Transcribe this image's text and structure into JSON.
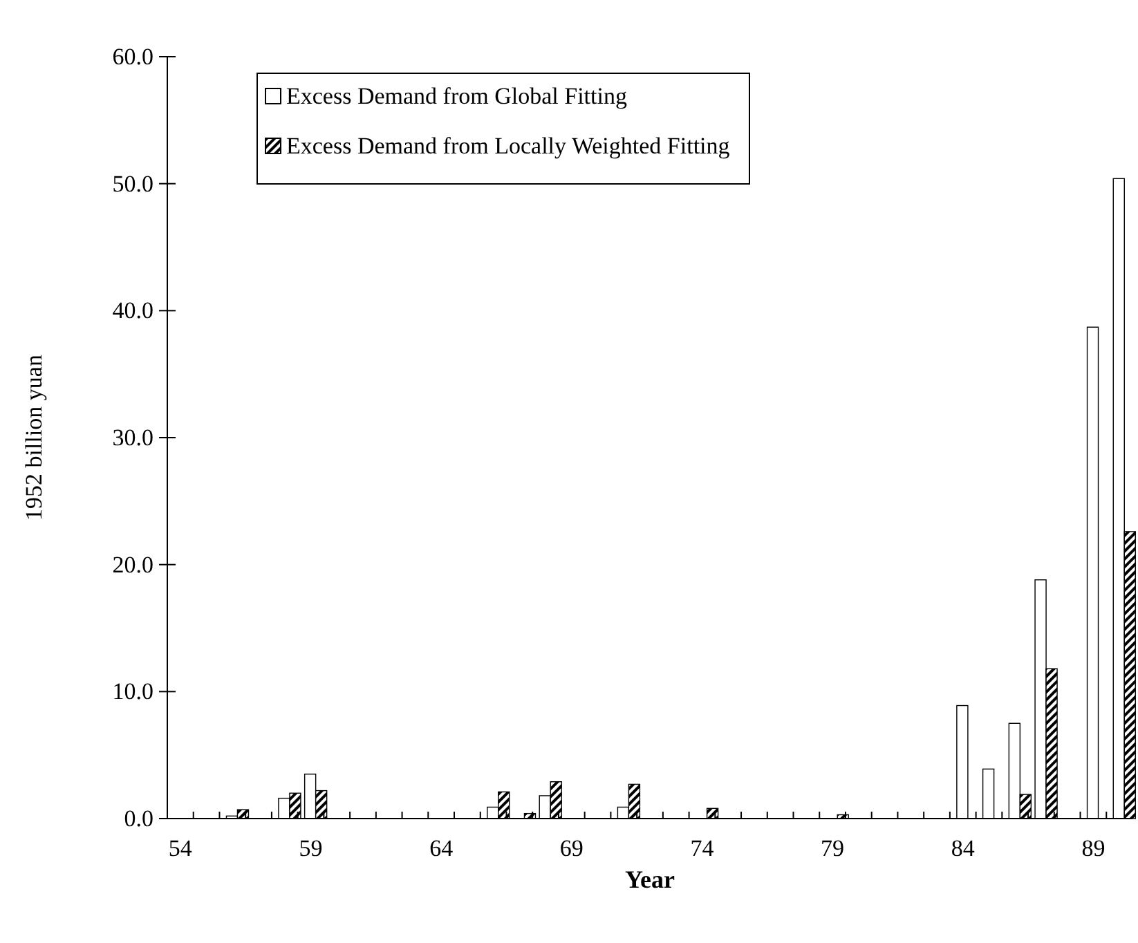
{
  "chart_data": {
    "type": "bar",
    "xlabel": "Year",
    "ylabel": "1952 billion yuan",
    "categories": [
      "54",
      null,
      null,
      null,
      null,
      "59",
      null,
      null,
      null,
      null,
      "64",
      null,
      null,
      null,
      null,
      "69",
      null,
      null,
      null,
      null,
      "74",
      null,
      null,
      null,
      null,
      "79",
      null,
      null,
      null,
      null,
      "84",
      null,
      null,
      null,
      null,
      "89",
      null
    ],
    "series": [
      {
        "name": "Excess Demand from Global Fitting",
        "color": "#ffffff",
        "values": [
          0,
          0,
          0.2,
          0,
          1.6,
          3.5,
          0,
          0,
          0,
          0,
          0,
          0,
          0.9,
          0,
          1.8,
          0,
          0,
          0.9,
          0,
          0,
          0,
          0,
          0,
          0,
          0,
          0,
          0,
          0,
          0,
          0,
          8.9,
          3.9,
          7.5,
          18.8,
          0,
          38.7,
          50.4
        ]
      },
      {
        "name": "Excess Demand from Locally Weighted Fitting",
        "color": "#000000",
        "values": [
          0,
          0,
          0.7,
          0,
          2.0,
          2.2,
          0,
          0,
          0,
          0,
          0,
          0,
          2.1,
          0.4,
          2.9,
          0,
          0,
          2.7,
          0,
          0,
          0.8,
          0,
          0,
          0,
          0,
          0.3,
          0,
          0,
          0,
          0,
          0,
          0,
          1.9,
          11.8,
          0,
          0,
          22.6
        ]
      }
    ],
    "ylim": [
      0,
      60
    ],
    "yticks": [
      {
        "value": 0,
        "label": "0.0"
      },
      {
        "value": 10,
        "label": "10.0"
      },
      {
        "value": 20,
        "label": "20.0"
      },
      {
        "value": 30,
        "label": "30.0"
      },
      {
        "value": 40,
        "label": "40.0"
      },
      {
        "value": 50,
        "label": "50.0"
      },
      {
        "value": 60,
        "label": "60.0"
      }
    ],
    "grid": false,
    "legend": "top left"
  }
}
